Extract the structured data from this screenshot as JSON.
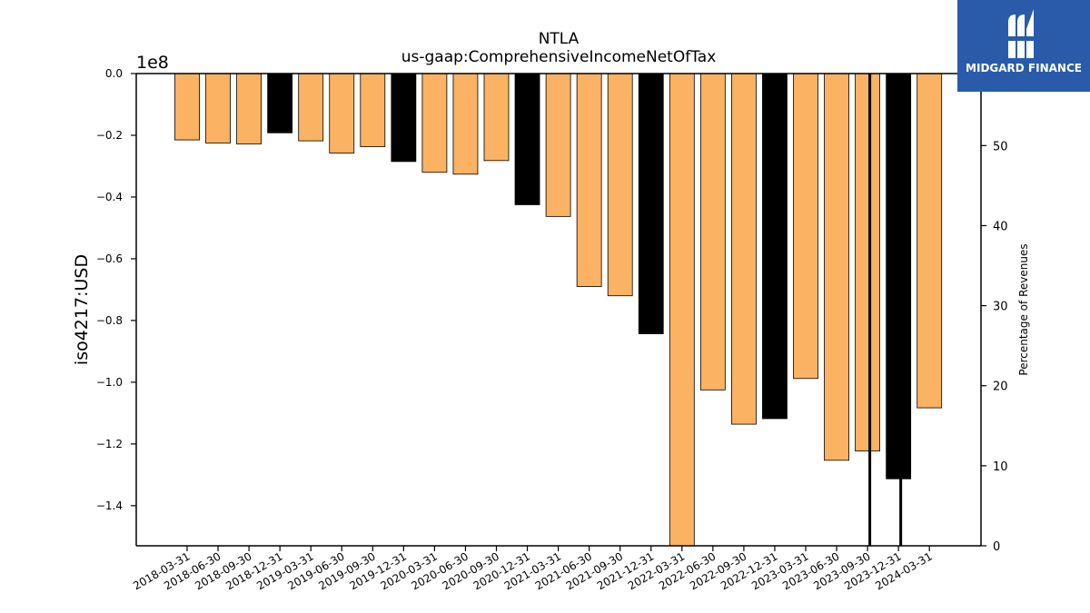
{
  "chart_data": {
    "type": "bar",
    "title": "NTLA",
    "subtitle": "us-gaap:ComprehensiveIncomeNetOfTax",
    "ylabel": "iso4217:USD",
    "y_offset_label": "1e8",
    "y2label": "Percentage of Revenues",
    "ylim": [
      -1.53,
      0.0
    ],
    "y2lim": [
      0,
      59
    ],
    "yticks": [
      "0.0",
      "−0.2",
      "−0.4",
      "−0.6",
      "−0.8",
      "−1.0",
      "−1.2",
      "−1.4"
    ],
    "y2ticks": [
      "0",
      "10",
      "20",
      "30",
      "40",
      "50"
    ],
    "categories": [
      "2018-03-31",
      "2018-06-30",
      "2018-09-30",
      "2018-12-31",
      "2019-03-31",
      "2019-06-30",
      "2019-09-30",
      "2019-12-31",
      "2020-03-31",
      "2020-06-30",
      "2020-09-30",
      "2020-12-31",
      "2021-03-31",
      "2021-06-30",
      "2021-09-30",
      "2021-12-31",
      "2022-03-31",
      "2022-06-30",
      "2022-09-30",
      "2022-12-31",
      "2023-03-31",
      "2023-06-30",
      "2023-09-30",
      "2023-12-31",
      "2024-03-31"
    ],
    "values": [
      -0.215,
      -0.225,
      -0.228,
      -0.192,
      -0.218,
      -0.258,
      -0.237,
      -0.285,
      -0.32,
      -0.326,
      -0.282,
      -0.425,
      -0.463,
      -0.69,
      -0.72,
      -0.843,
      -1.53,
      -1.025,
      -1.136,
      -1.118,
      -0.988,
      -1.253,
      -1.223,
      -1.313,
      -1.083
    ],
    "bar_colors": [
      "#fbb262",
      "#fbb262",
      "#fbb262",
      "#000000",
      "#fbb262",
      "#fbb262",
      "#fbb262",
      "#000000",
      "#fbb262",
      "#fbb262",
      "#fbb262",
      "#000000",
      "#fbb262",
      "#fbb262",
      "#fbb262",
      "#000000",
      "#fbb262",
      "#fbb262",
      "#fbb262",
      "#000000",
      "#fbb262",
      "#fbb262",
      "#fbb262",
      "#000000",
      "#fbb262"
    ],
    "percent_series": {
      "name": "",
      "x": [
        "2023-09-30",
        "2023-12-31"
      ],
      "values": [
        59,
        59
      ]
    },
    "grid": false
  },
  "logo": {
    "text": "MIDGARD FINANCE",
    "icon": "midgard-logo-icon",
    "color": "#2a5bab"
  }
}
